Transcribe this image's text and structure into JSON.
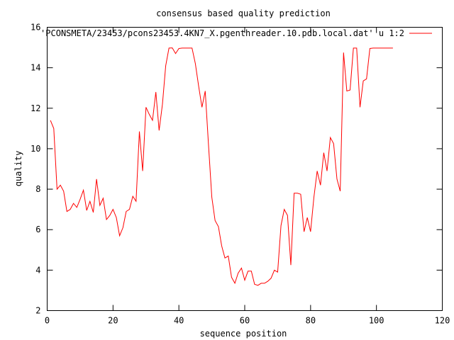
{
  "chart_data": {
    "type": "line",
    "title": "consensus based quality prediction",
    "xlabel": "sequence position",
    "ylabel": "quality",
    "xlim": [
      0,
      120
    ],
    "ylim": [
      2,
      16
    ],
    "xticks": [
      0,
      20,
      40,
      60,
      80,
      100,
      120
    ],
    "yticks": [
      2,
      4,
      6,
      8,
      10,
      12,
      14,
      16
    ],
    "grid": false,
    "legend_position": "top-right",
    "series": [
      {
        "name": "'PCONSMETA/23453/pcons23453.4KN7_X.pgenthreader.10.pdb.local.dat' u 1:2",
        "color": "#ff0000",
        "x": [
          1,
          2,
          3,
          4,
          5,
          6,
          7,
          8,
          9,
          10,
          11,
          12,
          13,
          14,
          15,
          16,
          17,
          18,
          19,
          20,
          21,
          22,
          23,
          24,
          25,
          26,
          27,
          28,
          29,
          30,
          31,
          32,
          33,
          34,
          35,
          36,
          37,
          38,
          39,
          40,
          41,
          42,
          43,
          44,
          45,
          46,
          47,
          48,
          49,
          50,
          51,
          52,
          53,
          54,
          55,
          56,
          57,
          58,
          59,
          60,
          61,
          62,
          63,
          64,
          65,
          66,
          67,
          68,
          69,
          70,
          71,
          72,
          73,
          74,
          75,
          76,
          77,
          78,
          79,
          80,
          81,
          82,
          83,
          84,
          85,
          86,
          87,
          88,
          89,
          90,
          91,
          92,
          93,
          94,
          95,
          96,
          97,
          98,
          99,
          100,
          101,
          102,
          103,
          104,
          105
        ],
        "y": [
          11.4,
          11.0,
          8.0,
          8.2,
          7.9,
          6.9,
          7.0,
          7.3,
          7.1,
          7.5,
          7.95,
          6.95,
          7.4,
          6.85,
          8.5,
          7.2,
          7.55,
          6.5,
          6.7,
          7.0,
          6.6,
          5.7,
          6.1,
          6.9,
          7.0,
          7.65,
          7.4,
          10.85,
          8.9,
          12.05,
          11.7,
          11.4,
          12.8,
          10.9,
          12.2,
          14.1,
          14.97,
          14.98,
          14.7,
          14.95,
          14.97,
          14.97,
          14.97,
          14.97,
          14.2,
          13.1,
          12.05,
          12.85,
          10.2,
          7.6,
          6.45,
          6.15,
          5.2,
          4.6,
          4.7,
          3.65,
          3.35,
          3.85,
          4.1,
          3.5,
          3.95,
          3.95,
          3.3,
          3.25,
          3.35,
          3.35,
          3.45,
          3.6,
          4.0,
          3.9,
          6.2,
          7.0,
          6.7,
          4.25,
          7.8,
          7.8,
          7.75,
          5.9,
          6.6,
          5.9,
          7.6,
          8.9,
          8.2,
          9.8,
          8.9,
          10.55,
          10.25,
          8.5,
          7.9,
          14.75,
          12.85,
          12.9,
          14.97,
          14.97,
          12.05,
          13.35,
          13.45,
          14.95,
          14.97,
          14.97,
          14.97,
          14.97,
          14.97,
          14.97,
          14.97
        ]
      }
    ]
  }
}
